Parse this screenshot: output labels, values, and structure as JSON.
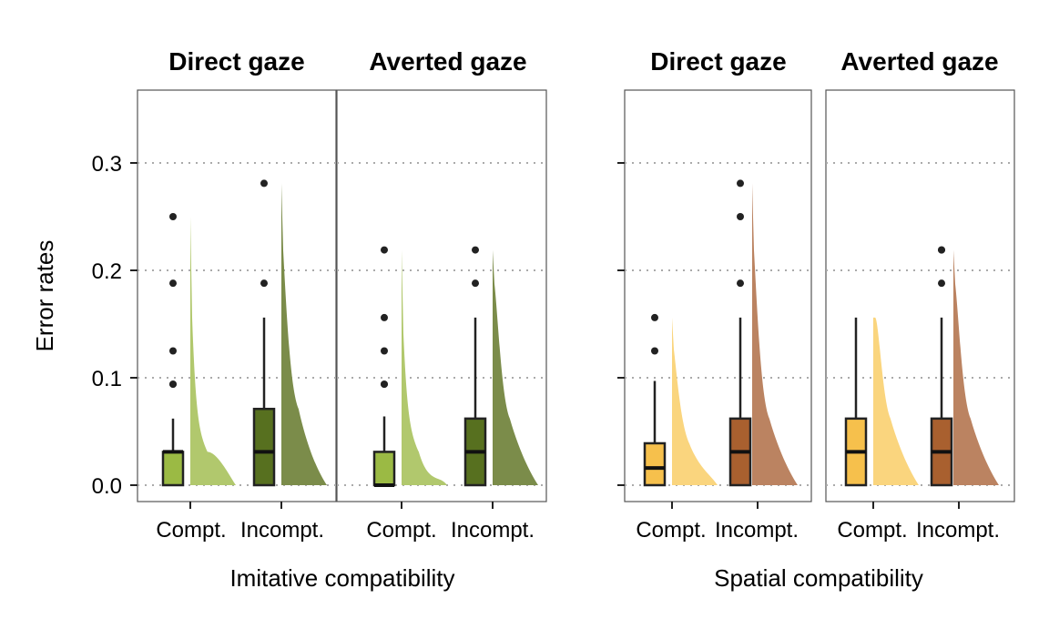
{
  "chart_data": [
    {
      "type": "box",
      "xlabel": "Imitative compatibility",
      "ylabel": "Error rates",
      "ylim": [
        -0.017,
        0.368
      ],
      "yticks": [
        0.0,
        0.1,
        0.2,
        0.3
      ],
      "ytick_labels": [
        "0.0",
        "0.1",
        "0.2",
        "0.3"
      ],
      "grid": "horizontal dotted",
      "categories": [
        "Compt.",
        "Incompt."
      ],
      "colors": {
        "Compt.": "#9bba44",
        "Incompt.": "#57701f"
      },
      "facets": [
        {
          "title": "Direct gaze",
          "boxes": [
            {
              "category": "Compt.",
              "min": 0.0,
              "q1": 0.0,
              "median": 0.031,
              "q3": 0.031,
              "max": 0.062,
              "outliers": [
                0.094,
                0.094,
                0.125,
                0.188,
                0.25
              ]
            },
            {
              "category": "Incompt.",
              "min": 0.0,
              "q1": 0.0,
              "median": 0.031,
              "q3": 0.071,
              "max": 0.156,
              "outliers": [
                0.188,
                0.281
              ]
            }
          ]
        },
        {
          "title": "Averted gaze",
          "boxes": [
            {
              "category": "Compt.",
              "min": 0.0,
              "q1": 0.0,
              "median": 0.0,
              "q3": 0.031,
              "max": 0.064,
              "outliers": [
                0.094,
                0.094,
                0.125,
                0.156,
                0.219
              ]
            },
            {
              "category": "Incompt.",
              "min": 0.0,
              "q1": 0.0,
              "median": 0.031,
              "q3": 0.062,
              "max": 0.156,
              "outliers": [
                0.188,
                0.219
              ]
            }
          ]
        }
      ]
    },
    {
      "type": "box",
      "xlabel": "Spatial compatibility",
      "ylabel": "",
      "ylim": [
        -0.017,
        0.368
      ],
      "yticks": [
        0.0,
        0.1,
        0.2,
        0.3
      ],
      "grid": "horizontal dotted",
      "categories": [
        "Compt.",
        "Incompt."
      ],
      "colors": {
        "Compt.": "#f6c04c",
        "Incompt.": "#a9602f"
      },
      "facets": [
        {
          "title": "Direct gaze",
          "boxes": [
            {
              "category": "Compt.",
              "min": 0.0,
              "q1": 0.0,
              "median": 0.016,
              "q3": 0.039,
              "max": 0.097,
              "outliers": [
                0.125,
                0.156
              ]
            },
            {
              "category": "Incompt.",
              "min": 0.0,
              "q1": 0.0,
              "median": 0.031,
              "q3": 0.062,
              "max": 0.156,
              "outliers": [
                0.188,
                0.25,
                0.281
              ]
            }
          ]
        },
        {
          "title": "Averted gaze",
          "boxes": [
            {
              "category": "Compt.",
              "min": 0.0,
              "q1": 0.0,
              "median": 0.031,
              "q3": 0.062,
              "max": 0.156,
              "outliers": []
            },
            {
              "category": "Incompt.",
              "min": 0.0,
              "q1": 0.0,
              "median": 0.031,
              "q3": 0.062,
              "max": 0.156,
              "outliers": [
                0.188,
                0.219,
                0.219
              ]
            }
          ]
        }
      ]
    }
  ]
}
